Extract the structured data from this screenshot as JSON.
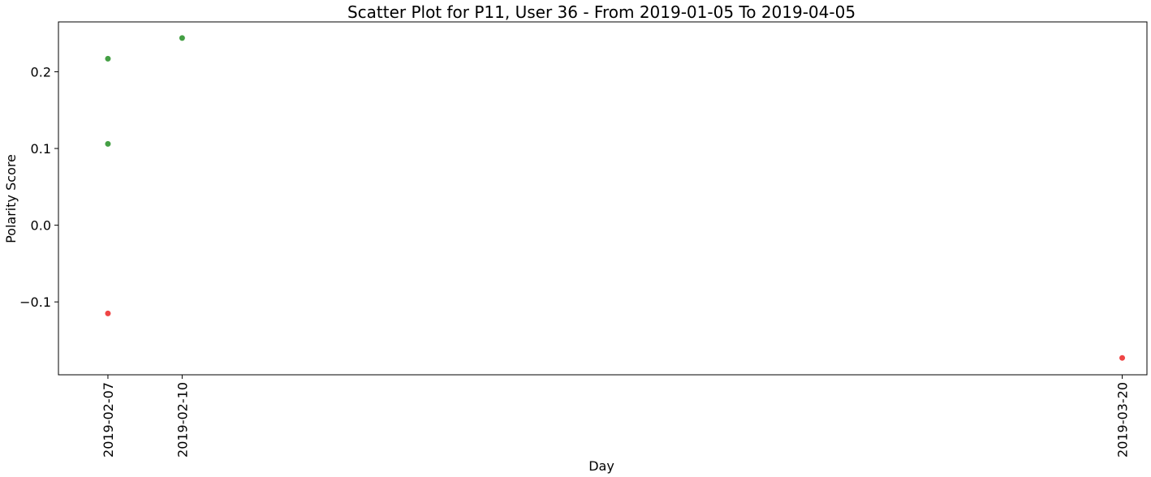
{
  "chart_data": {
    "type": "scatter",
    "title": "Scatter Plot for P11, User 36 - From 2019-01-05 To 2019-04-05",
    "xlabel": "Day",
    "ylabel": "Polarity Score",
    "x_type": "date",
    "xlim": [
      "2019-02-05",
      "2019-03-21"
    ],
    "ylim": [
      -0.195,
      0.265
    ],
    "x_ticks": [
      "2019-02-07",
      "2019-02-10",
      "2019-03-20"
    ],
    "y_ticks": [
      {
        "value": -0.1,
        "label": "−0.1"
      },
      {
        "value": 0.0,
        "label": "0.0"
      },
      {
        "value": 0.1,
        "label": "0.1"
      },
      {
        "value": 0.2,
        "label": "0.2"
      }
    ],
    "grid": false,
    "points": [
      {
        "x": "2019-02-07",
        "y": 0.217,
        "color": "#3a9a3a"
      },
      {
        "x": "2019-02-07",
        "y": 0.106,
        "color": "#3a9a3a"
      },
      {
        "x": "2019-02-07",
        "y": -0.115,
        "color": "#ee3b3b"
      },
      {
        "x": "2019-02-10",
        "y": 0.244,
        "color": "#3a9a3a"
      },
      {
        "x": "2019-03-20",
        "y": -0.173,
        "color": "#ee3b3b"
      }
    ]
  }
}
